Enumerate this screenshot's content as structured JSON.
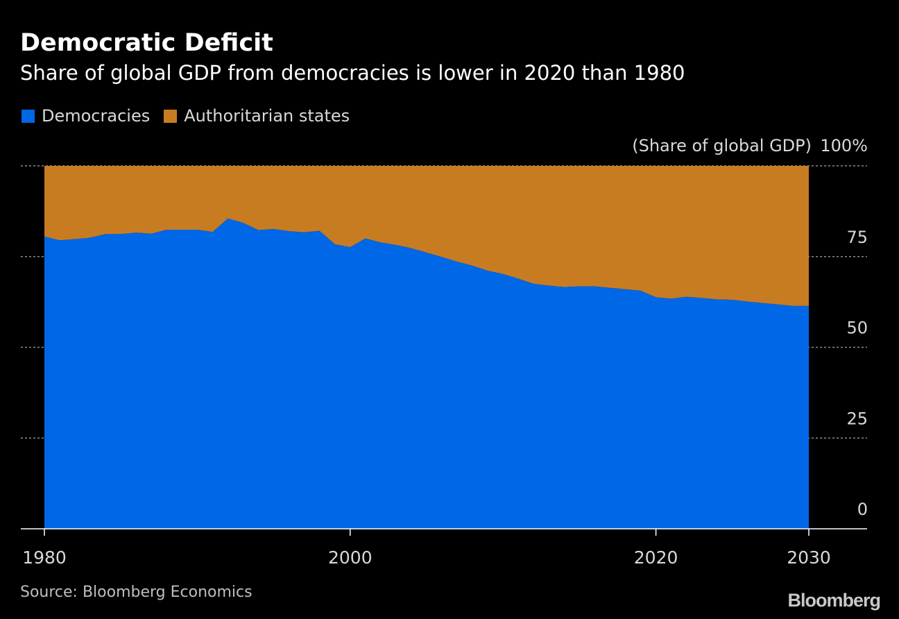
{
  "title": "Democratic Deficit",
  "subtitle": "Share of global GDP from democracies is lower in 2020 than 1980",
  "source": "Source: Bloomberg Economics",
  "brand": "Bloomberg",
  "colors": {
    "background": "#000000",
    "democracies": "#0068e6",
    "authoritarian": "#c87c22",
    "grid": "#8c8c8c",
    "axis": "#ffffff",
    "tick_text": "#d9d9d9"
  },
  "chart_data": {
    "type": "area",
    "stacked": true,
    "ylabel": "(Share of global GDP)",
    "xlim": [
      1980,
      2030
    ],
    "ylim": [
      0,
      100
    ],
    "y_ticks": [
      {
        "value": 0,
        "label": "0"
      },
      {
        "value": 25,
        "label": "25"
      },
      {
        "value": 50,
        "label": "50"
      },
      {
        "value": 75,
        "label": "75"
      },
      {
        "value": 100,
        "label": "100%"
      }
    ],
    "x_ticks": [
      {
        "value": 1980,
        "label": "1980"
      },
      {
        "value": 2000,
        "label": "2000"
      },
      {
        "value": 2020,
        "label": "2020"
      },
      {
        "value": 2030,
        "label": "2030"
      }
    ],
    "grid": true,
    "legend_position": "top-left",
    "x": [
      1980,
      1981,
      1982,
      1983,
      1984,
      1985,
      1986,
      1987,
      1988,
      1989,
      1990,
      1991,
      1992,
      1993,
      1994,
      1995,
      1996,
      1997,
      1998,
      1999,
      2000,
      2001,
      2002,
      2003,
      2004,
      2005,
      2006,
      2007,
      2008,
      2009,
      2010,
      2011,
      2012,
      2013,
      2014,
      2015,
      2016,
      2017,
      2018,
      2019,
      2020,
      2021,
      2022,
      2023,
      2024,
      2025,
      2026,
      2027,
      2028,
      2029,
      2030
    ],
    "series": [
      {
        "name": "Democracies",
        "values": [
          80.5,
          79.5,
          79.8,
          80.2,
          81.2,
          81.2,
          81.6,
          81.3,
          82.4,
          82.4,
          82.4,
          81.8,
          85.5,
          84.3,
          82.3,
          82.6,
          82.0,
          81.7,
          82.1,
          78.4,
          77.6,
          80.0,
          78.9,
          78.2,
          77.3,
          76.1,
          74.9,
          73.6,
          72.5,
          71.1,
          70.2,
          68.9,
          67.5,
          67.0,
          66.6,
          66.8,
          66.8,
          66.4,
          66.0,
          65.6,
          63.8,
          63.4,
          63.9,
          63.6,
          63.2,
          63.1,
          62.6,
          62.2,
          61.8,
          61.4,
          61.4
        ]
      },
      {
        "name": "Authoritarian states",
        "values": [
          19.5,
          20.5,
          20.2,
          19.8,
          18.8,
          18.8,
          18.4,
          18.7,
          17.6,
          17.6,
          17.6,
          18.2,
          14.5,
          15.7,
          17.7,
          17.4,
          18.0,
          18.3,
          17.9,
          21.6,
          22.4,
          20.0,
          21.1,
          21.8,
          22.7,
          23.9,
          25.1,
          26.4,
          27.5,
          28.9,
          29.8,
          31.1,
          32.5,
          33.0,
          33.4,
          33.2,
          33.2,
          33.6,
          34.0,
          34.4,
          36.2,
          36.6,
          36.1,
          36.4,
          36.8,
          36.9,
          37.4,
          37.8,
          38.2,
          38.6,
          38.6
        ]
      }
    ]
  }
}
